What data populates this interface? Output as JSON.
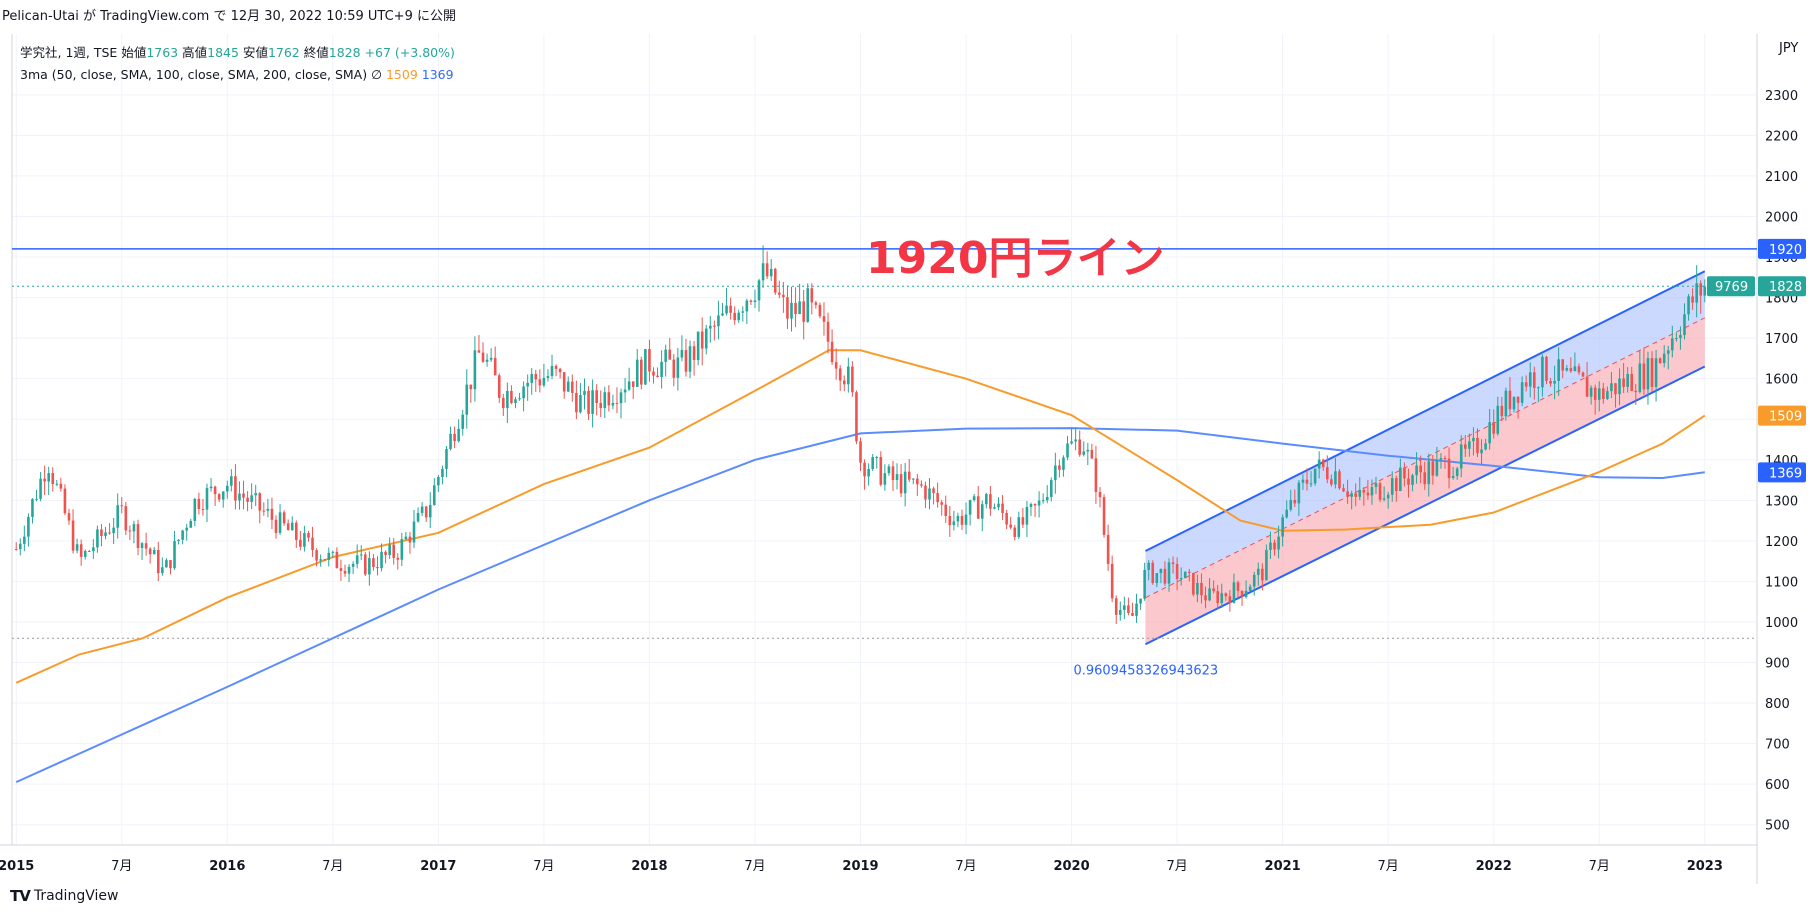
{
  "header": {
    "text": "Pelican-Utai が TradingView.com で 12月 30, 2022 10:59 UTC+9 に公開"
  },
  "legend": {
    "symbol": "学究社, 1週, TSE",
    "open_label": "始値",
    "open": "1763",
    "high_label": "高値",
    "high": "1845",
    "low_label": "安値",
    "low": "1762",
    "close_label": "終値",
    "close": "1828",
    "change": "+67 (+3.80%)",
    "ma_label": "3ma (50, close, SMA, 100, close, SMA, 200, close, SMA)",
    "ma_symbol": "∅",
    "ma1_value": "1509",
    "ma2_value": "1369"
  },
  "annotation": {
    "text": "1920円ライン"
  },
  "footer": {
    "logo": "TV",
    "brand": "TradingView"
  },
  "colors": {
    "up": "#26a69a",
    "down": "#ef5350",
    "ma_orange": "#f89b2b",
    "ma_blue": "#5b8cff",
    "hline": "#2962ff",
    "annotation": "#f23645",
    "channel_upper": "#a9bfff",
    "channel_lower": "#f8a3ad"
  },
  "chart_data": {
    "type": "candlestick",
    "currency": "JPY",
    "y_range": [
      450,
      2450
    ],
    "y_ticks": [
      500,
      600,
      700,
      800,
      900,
      1000,
      1100,
      1200,
      1300,
      1400,
      1500,
      1600,
      1700,
      1800,
      1900,
      2000,
      2100,
      2200,
      2300
    ],
    "x_ticks": [
      "2015",
      "7月",
      "2016",
      "7月",
      "2017",
      "7月",
      "2018",
      "7月",
      "2019",
      "7月",
      "2020",
      "7月",
      "2021",
      "7月",
      "2022",
      "7月",
      "2023"
    ],
    "price_path": [
      {
        "t": 2015.0,
        "p": 1180
      },
      {
        "t": 2015.15,
        "p": 1400
      },
      {
        "t": 2015.3,
        "p": 1150
      },
      {
        "t": 2015.5,
        "p": 1270
      },
      {
        "t": 2015.7,
        "p": 1120
      },
      {
        "t": 2015.85,
        "p": 1300
      },
      {
        "t": 2016.0,
        "p": 1340
      },
      {
        "t": 2016.2,
        "p": 1260
      },
      {
        "t": 2016.35,
        "p": 1200
      },
      {
        "t": 2016.5,
        "p": 1150
      },
      {
        "t": 2016.65,
        "p": 1140
      },
      {
        "t": 2016.8,
        "p": 1170
      },
      {
        "t": 2016.95,
        "p": 1280
      },
      {
        "t": 2017.1,
        "p": 1520
      },
      {
        "t": 2017.2,
        "p": 1670
      },
      {
        "t": 2017.3,
        "p": 1560
      },
      {
        "t": 2017.45,
        "p": 1600
      },
      {
        "t": 2017.55,
        "p": 1610
      },
      {
        "t": 2017.7,
        "p": 1530
      },
      {
        "t": 2017.85,
        "p": 1580
      },
      {
        "t": 2018.0,
        "p": 1640
      },
      {
        "t": 2018.15,
        "p": 1630
      },
      {
        "t": 2018.3,
        "p": 1720
      },
      {
        "t": 2018.45,
        "p": 1800
      },
      {
        "t": 2018.55,
        "p": 1860
      },
      {
        "t": 2018.65,
        "p": 1760
      },
      {
        "t": 2018.75,
        "p": 1780
      },
      {
        "t": 2018.85,
        "p": 1690
      },
      {
        "t": 2018.95,
        "p": 1590
      },
      {
        "t": 2019.0,
        "p": 1400
      },
      {
        "t": 2019.15,
        "p": 1350
      },
      {
        "t": 2019.3,
        "p": 1330
      },
      {
        "t": 2019.45,
        "p": 1250
      },
      {
        "t": 2019.6,
        "p": 1300
      },
      {
        "t": 2019.75,
        "p": 1230
      },
      {
        "t": 2019.85,
        "p": 1290
      },
      {
        "t": 2019.95,
        "p": 1420
      },
      {
        "t": 2020.05,
        "p": 1450
      },
      {
        "t": 2020.12,
        "p": 1340
      },
      {
        "t": 2020.2,
        "p": 1050
      },
      {
        "t": 2020.28,
        "p": 1000
      },
      {
        "t": 2020.35,
        "p": 1120
      },
      {
        "t": 2020.5,
        "p": 1120
      },
      {
        "t": 2020.65,
        "p": 1060
      },
      {
        "t": 2020.8,
        "p": 1080
      },
      {
        "t": 2020.9,
        "p": 1120
      },
      {
        "t": 2021.0,
        "p": 1250
      },
      {
        "t": 2021.15,
        "p": 1380
      },
      {
        "t": 2021.25,
        "p": 1370
      },
      {
        "t": 2021.35,
        "p": 1300
      },
      {
        "t": 2021.5,
        "p": 1340
      },
      {
        "t": 2021.65,
        "p": 1370
      },
      {
        "t": 2021.8,
        "p": 1390
      },
      {
        "t": 2021.9,
        "p": 1420
      },
      {
        "t": 2022.0,
        "p": 1500
      },
      {
        "t": 2022.15,
        "p": 1600
      },
      {
        "t": 2022.25,
        "p": 1620
      },
      {
        "t": 2022.4,
        "p": 1590
      },
      {
        "t": 2022.5,
        "p": 1560
      },
      {
        "t": 2022.65,
        "p": 1600
      },
      {
        "t": 2022.75,
        "p": 1620
      },
      {
        "t": 2022.85,
        "p": 1710
      },
      {
        "t": 2022.95,
        "p": 1800
      },
      {
        "t": 2023.0,
        "p": 1828
      }
    ],
    "ma_orange_path": [
      {
        "t": 2015.0,
        "p": 850
      },
      {
        "t": 2015.3,
        "p": 920
      },
      {
        "t": 2015.6,
        "p": 960
      },
      {
        "t": 2016.0,
        "p": 1060
      },
      {
        "t": 2016.5,
        "p": 1160
      },
      {
        "t": 2017.0,
        "p": 1220
      },
      {
        "t": 2017.5,
        "p": 1340
      },
      {
        "t": 2018.0,
        "p": 1430
      },
      {
        "t": 2018.5,
        "p": 1570
      },
      {
        "t": 2018.85,
        "p": 1670
      },
      {
        "t": 2019.0,
        "p": 1670
      },
      {
        "t": 2019.5,
        "p": 1600
      },
      {
        "t": 2020.0,
        "p": 1510
      },
      {
        "t": 2020.5,
        "p": 1350
      },
      {
        "t": 2020.8,
        "p": 1250
      },
      {
        "t": 2021.0,
        "p": 1225
      },
      {
        "t": 2021.3,
        "p": 1228
      },
      {
        "t": 2021.7,
        "p": 1240
      },
      {
        "t": 2022.0,
        "p": 1270
      },
      {
        "t": 2022.5,
        "p": 1370
      },
      {
        "t": 2022.8,
        "p": 1440
      },
      {
        "t": 2023.0,
        "p": 1509
      }
    ],
    "ma_blue_path": [
      {
        "t": 2015.0,
        "p": 605
      },
      {
        "t": 2016.0,
        "p": 840
      },
      {
        "t": 2017.0,
        "p": 1080
      },
      {
        "t": 2018.0,
        "p": 1300
      },
      {
        "t": 2018.5,
        "p": 1400
      },
      {
        "t": 2019.0,
        "p": 1465
      },
      {
        "t": 2019.5,
        "p": 1477
      },
      {
        "t": 2020.0,
        "p": 1478
      },
      {
        "t": 2020.5,
        "p": 1472
      },
      {
        "t": 2021.0,
        "p": 1440
      },
      {
        "t": 2021.5,
        "p": 1410
      },
      {
        "t": 2022.0,
        "p": 1385
      },
      {
        "t": 2022.5,
        "p": 1357
      },
      {
        "t": 2022.8,
        "p": 1355
      },
      {
        "t": 2023.0,
        "p": 1369
      }
    ],
    "horizontal_line": {
      "value": 1920,
      "label": "1920"
    },
    "dotted_lines": [
      {
        "value": 1828
      },
      {
        "value": 960
      }
    ],
    "regression_channel": {
      "start": 2020.35,
      "end": 2023.0,
      "upper_start": 1175,
      "upper_end": 1865,
      "mid_start": 1060,
      "mid_end": 1750,
      "lower_start": 945,
      "lower_end": 1630,
      "label": "0.9609458326943623"
    },
    "price_labels": [
      {
        "value": 1920,
        "text": "1920",
        "kind": "line"
      },
      {
        "value": 1828,
        "text": "1828",
        "kind": "last"
      },
      {
        "value": 1509,
        "text": "1509",
        "kind": "ma_orange"
      },
      {
        "value": 1369,
        "text": "1369",
        "kind": "ma_blue"
      }
    ],
    "volume_label": "9769"
  }
}
